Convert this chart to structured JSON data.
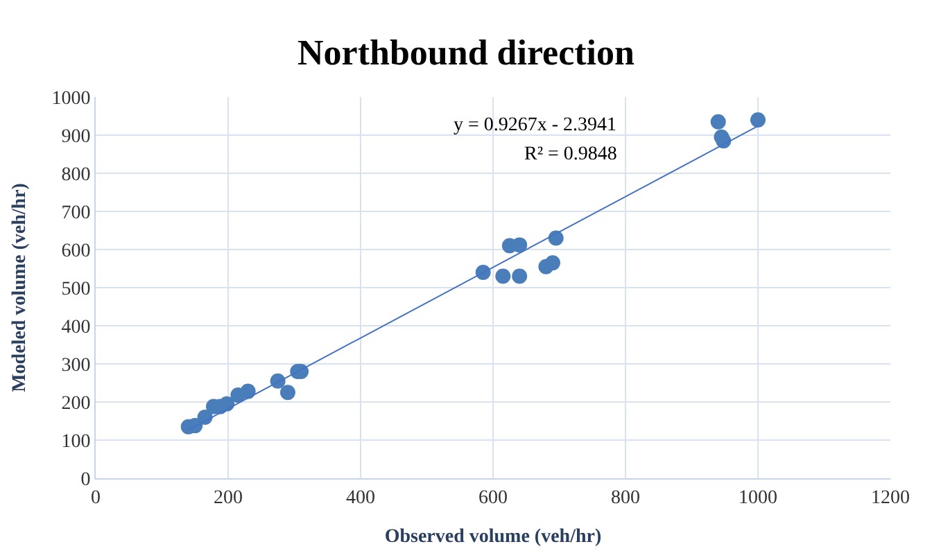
{
  "chart_data": {
    "type": "scatter",
    "title": "Northbound direction",
    "xlabel": "Observed volume (veh/hr)",
    "ylabel": "Modeled volume (veh/hr)",
    "xlim": [
      0,
      1200
    ],
    "xticks": [
      0,
      200,
      400,
      600,
      800,
      1000,
      1200
    ],
    "ylim": [
      0,
      1000
    ],
    "yticks": [
      0,
      100,
      200,
      300,
      400,
      500,
      600,
      700,
      800,
      900,
      1000
    ],
    "grid": true,
    "marker": "circle",
    "annotations": [
      "y = 0.9267x - 2.3941",
      "R² = 0.9848"
    ],
    "series": [
      {
        "color": "#4a7ebb",
        "x": [
          140,
          150,
          165,
          178,
          188,
          198,
          215,
          230,
          275,
          290,
          305,
          310,
          585,
          615,
          625,
          640,
          640,
          680,
          690,
          695,
          940,
          945,
          948,
          1000
        ],
        "values": [
          135,
          138,
          160,
          188,
          188,
          195,
          218,
          228,
          255,
          225,
          280,
          280,
          540,
          530,
          610,
          612,
          530,
          555,
          565,
          630,
          935,
          895,
          885,
          940
        ]
      },
      {
        "type": "line",
        "color": "#4472c4",
        "line_style": "solid",
        "marker": "none",
        "x": [
          140,
          1000
        ],
        "values": [
          127,
          924
        ]
      }
    ]
  }
}
